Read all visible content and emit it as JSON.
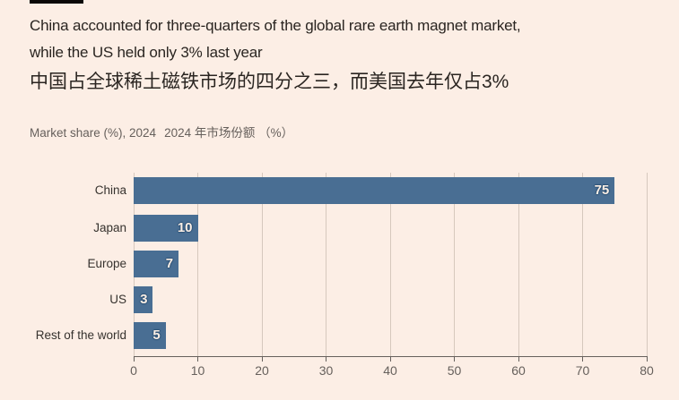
{
  "header": {
    "title_en": "China accounted for three-quarters of the global rare earth magnet market,\nwhile the US held only 3% last year",
    "title_zh": "中国占全球稀土磁铁市场的四分之三，而美国去年仅占3%",
    "subtitle_en": "Market share (%), 2024",
    "subtitle_zh": "2024 年市场份额 （%）"
  },
  "colors": {
    "background": "#FCEEE5",
    "bar": "#496E93",
    "bar_label": "#FBEFE5",
    "title": "#2A2521",
    "muted_text": "#66605C",
    "gridline": "#D6C8BD",
    "top_rule": "#0A0807"
  },
  "chart_data": {
    "type": "bar",
    "orientation": "horizontal",
    "title": "Market share (%), 2024",
    "categories": [
      "China",
      "Japan",
      "Europe",
      "US",
      "Rest of the world"
    ],
    "values": [
      75,
      10,
      7,
      3,
      5
    ],
    "xlabel": "Market share (%)",
    "ylabel": "",
    "xlim": [
      0,
      80
    ],
    "xticks": [
      0,
      10,
      20,
      30,
      40,
      50,
      60,
      70,
      80
    ],
    "grid": true,
    "data_labels": [
      75,
      10,
      7,
      3,
      5
    ],
    "legend": "none"
  }
}
